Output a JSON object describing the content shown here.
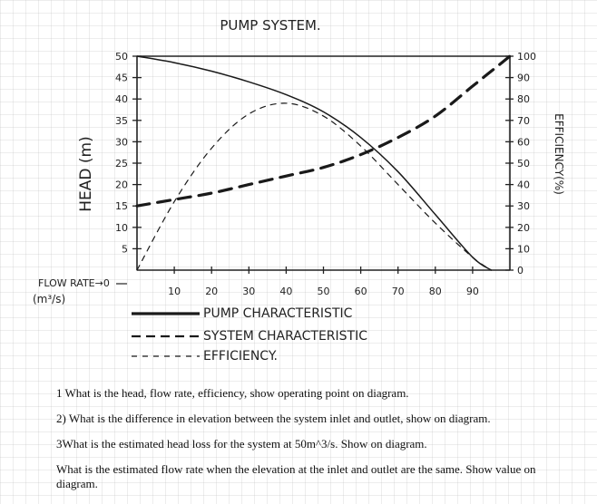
{
  "chart_data": {
    "type": "line",
    "title": "PUMP SYSTEM.",
    "xlabel": "FLOW RATE→0",
    "xlabel_units": "(m³/s)",
    "ylabel_left": "HEAD (m)",
    "ylabel_right": "EFFICIENCY(%)",
    "xlim": [
      0,
      100
    ],
    "ylim_left": [
      0,
      50
    ],
    "ylim_right": [
      0,
      100
    ],
    "x_ticks": [
      "10",
      "20",
      "30",
      "40",
      "50",
      "60",
      "70",
      "80",
      "90"
    ],
    "y_ticks_left": [
      "5",
      "10",
      "15",
      "20",
      "25",
      "30",
      "35",
      "40",
      "45",
      "50"
    ],
    "y_ticks_right": [
      "0",
      "10",
      "20",
      "30",
      "40",
      "50",
      "60",
      "70",
      "80",
      "90",
      "100"
    ],
    "series": [
      {
        "name": "PUMP CHARACTERISTIC",
        "style": "solid",
        "axis": "left",
        "x": [
          0,
          10,
          20,
          30,
          40,
          50,
          60,
          70,
          80,
          90,
          95
        ],
        "y": [
          50,
          48.5,
          46.5,
          44,
          41,
          37,
          31,
          23,
          13,
          3,
          0
        ]
      },
      {
        "name": "SYSTEM CHARACTERISTIC",
        "style": "dashed",
        "axis": "left",
        "x": [
          0,
          10,
          20,
          30,
          40,
          50,
          60,
          70,
          80,
          90,
          100
        ],
        "y": [
          15,
          16.5,
          18,
          20,
          22,
          24,
          27,
          31,
          36,
          43,
          50
        ]
      },
      {
        "name": "EFFICIENCY",
        "style": "dotted",
        "axis": "right",
        "x": [
          0,
          10,
          20,
          30,
          40,
          50,
          60,
          70,
          80,
          90,
          95
        ],
        "y": [
          0,
          32,
          57,
          73,
          78,
          72,
          58,
          40,
          22,
          6,
          0
        ]
      }
    ],
    "legend": [
      "PUMP CHARACTERISTIC",
      "SYSTEM CHARACTERISTIC",
      "EFFICIENCY."
    ],
    "legend_position": "bottom",
    "grid": false
  },
  "questions": [
    "1 What is the head, flow rate, efficiency, show operating point on diagram.",
    "2) What is the difference in elevation between the system inlet and outlet, show on diagram.",
    "3What is the estimated head loss for the system at 50m^3/s. Show on diagram.",
    "What is the estimated flow rate when the elevation at the inlet and outlet are the same. Show value on diagram."
  ]
}
